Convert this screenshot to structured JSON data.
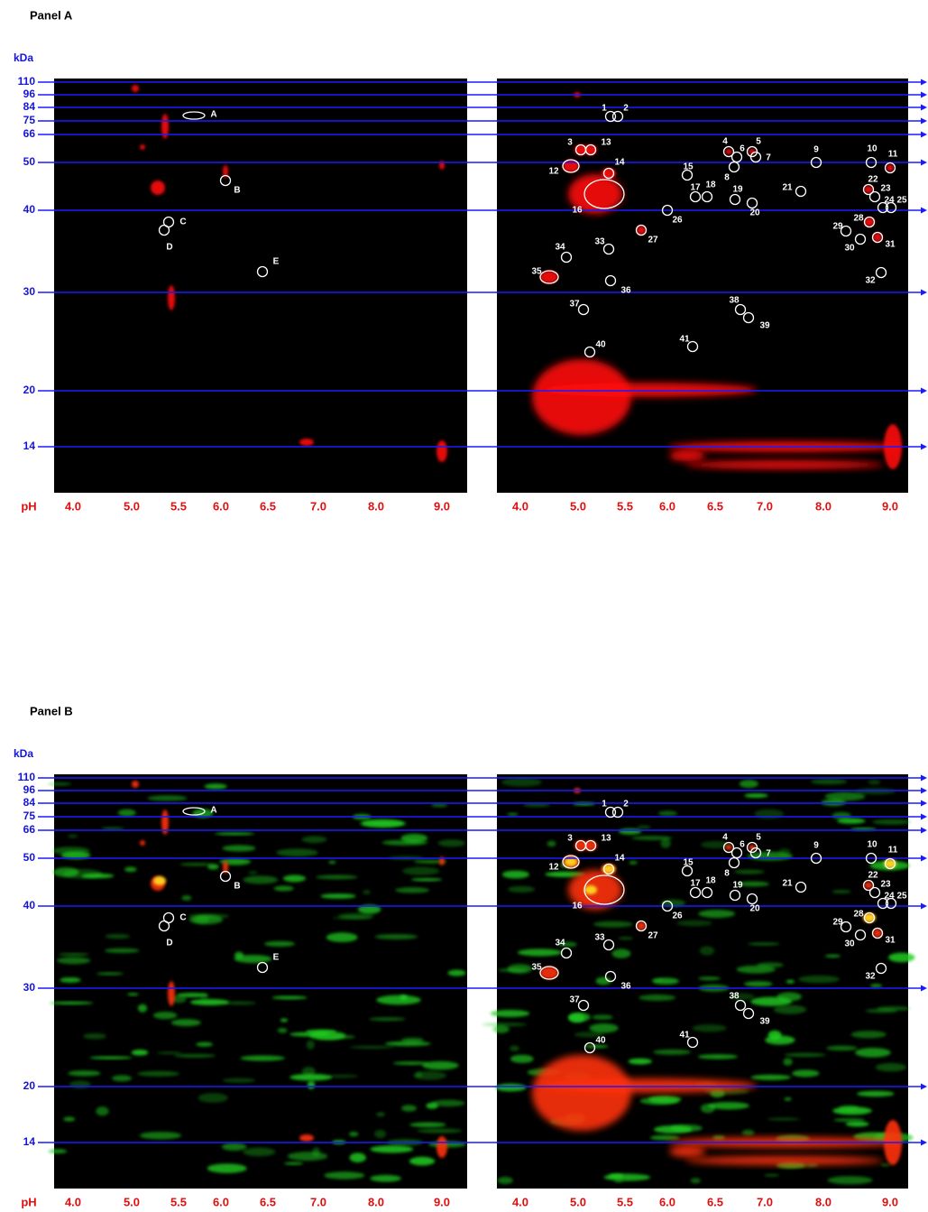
{
  "panels": [
    {
      "title": "Panel A",
      "unit": "kDa",
      "kda": [
        "110",
        "96",
        "84",
        "75",
        "66",
        "50",
        "40",
        "30",
        "20",
        "14"
      ],
      "ph_label": "pH",
      "ph_left": [
        "4.0",
        "5.0",
        "5.5",
        "6.0",
        "6.5",
        "7.0",
        "8.0",
        "9.0"
      ],
      "ph_right": [
        "4.0",
        "5.0",
        "5.5",
        "6.0",
        "6.5",
        "7.0",
        "8.0",
        "9.0"
      ],
      "left_spots": [
        "A",
        "B",
        "C",
        "D",
        "E"
      ],
      "right_spots": [
        "1",
        "2",
        "3",
        "4",
        "5",
        "6",
        "7",
        "8",
        "9",
        "10",
        "11",
        "12",
        "13",
        "14",
        "15",
        "16",
        "17",
        "18",
        "19",
        "20",
        "21",
        "22",
        "23",
        "24",
        "25",
        "26",
        "27",
        "28",
        "29",
        "30",
        "31",
        "32",
        "33",
        "34",
        "35",
        "36",
        "37",
        "38",
        "39",
        "40",
        "41"
      ]
    },
    {
      "title": "Panel B",
      "unit": "kDa",
      "kda": [
        "110",
        "96",
        "84",
        "75",
        "66",
        "50",
        "40",
        "30",
        "20",
        "14"
      ],
      "ph_label": "pH",
      "ph_left": [
        "4.0",
        "5.0",
        "5.5",
        "6.0",
        "6.5",
        "7.0",
        "8.0",
        "9.0"
      ],
      "ph_right": [
        "4.0",
        "5.0",
        "5.5",
        "6.0",
        "6.5",
        "7.0",
        "8.0",
        "9.0"
      ],
      "left_spots": [
        "A",
        "B",
        "C",
        "D",
        "E"
      ],
      "right_spots": [
        "1",
        "2",
        "3",
        "4",
        "5",
        "6",
        "7",
        "8",
        "9",
        "10",
        "11",
        "12",
        "13",
        "14",
        "15",
        "16",
        "17",
        "18",
        "19",
        "20",
        "21",
        "22",
        "23",
        "24",
        "25",
        "26",
        "27",
        "28",
        "29",
        "30",
        "31",
        "32",
        "33",
        "34",
        "35",
        "36",
        "37",
        "38",
        "39",
        "40",
        "41"
      ]
    }
  ]
}
